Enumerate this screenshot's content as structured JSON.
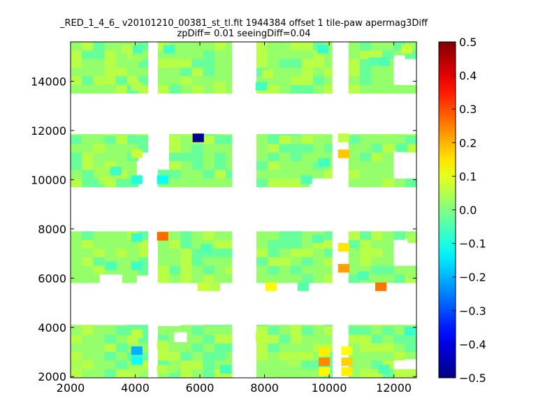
{
  "chart_data": {
    "type": "heatmap",
    "title_lines": [
      "_RED_1_4_6_ v20101210_00381_st_tl.fit 1944384 offset 1 tile-paw apermag3Diff",
      "zpDiff= 0.01 seeingDiff=0.04"
    ],
    "xlabel": "",
    "ylabel": "",
    "xlim": [
      2000,
      12700
    ],
    "ylim": [
      1950,
      15600
    ],
    "x_ticks": [
      2000,
      4000,
      6000,
      8000,
      10000,
      12000
    ],
    "y_ticks": [
      2000,
      4000,
      6000,
      8000,
      10000,
      12000,
      14000
    ],
    "x_tick_labels": [
      "2000",
      "4000",
      "6000",
      "8000",
      "10000",
      "12000"
    ],
    "y_tick_labels": [
      "2000",
      "4000",
      "6000",
      "8000",
      "10000",
      "12000",
      "14000"
    ],
    "colorbar": {
      "colormap": "jet",
      "range": [
        -0.5,
        0.5
      ],
      "ticks": [
        0.5,
        0.4,
        0.3,
        0.2,
        0.1,
        0.0,
        -0.1,
        -0.2,
        -0.3,
        -0.4,
        -0.5
      ],
      "tick_labels": [
        "0.5",
        "0.4",
        "0.3",
        "0.2",
        "0.1",
        "0.0",
        "−0.1",
        "−0.2",
        "−0.3",
        "−0.4",
        "−0.5"
      ]
    },
    "cell_size": [
      350,
      350
    ],
    "background_value": 0.02,
    "tiles": [
      {
        "x": [
          2000,
          4400
        ],
        "y": [
          1950,
          4100
        ]
      },
      {
        "x": [
          4700,
          7000
        ],
        "y": [
          1950,
          4100
        ]
      },
      {
        "x": [
          7750,
          10100
        ],
        "y": [
          1950,
          4100
        ]
      },
      {
        "x": [
          10600,
          12700
        ],
        "y": [
          1950,
          4100
        ]
      },
      {
        "x": [
          2000,
          4400
        ],
        "y": [
          5800,
          7900
        ]
      },
      {
        "x": [
          4700,
          7000
        ],
        "y": [
          5800,
          7900
        ]
      },
      {
        "x": [
          7750,
          10100
        ],
        "y": [
          5800,
          7900
        ]
      },
      {
        "x": [
          10600,
          12700
        ],
        "y": [
          5800,
          7900
        ]
      },
      {
        "x": [
          2000,
          4400
        ],
        "y": [
          9700,
          11850
        ]
      },
      {
        "x": [
          4700,
          7000
        ],
        "y": [
          9700,
          11850
        ]
      },
      {
        "x": [
          7750,
          10100
        ],
        "y": [
          9700,
          11850
        ]
      },
      {
        "x": [
          10600,
          12700
        ],
        "y": [
          9700,
          11850
        ]
      },
      {
        "x": [
          2000,
          4400
        ],
        "y": [
          13500,
          15600
        ]
      },
      {
        "x": [
          4700,
          7000
        ],
        "y": [
          13500,
          15600
        ]
      },
      {
        "x": [
          7750,
          10100
        ],
        "y": [
          13500,
          15600
        ]
      },
      {
        "x": [
          10600,
          12700
        ],
        "y": [
          13500,
          15600
        ]
      }
    ],
    "gaps": [
      {
        "x": [
          4050,
          4400
        ],
        "y": [
          9700,
          11150
        ]
      },
      {
        "x": [
          4700,
          5050
        ],
        "y": [
          10400,
          11850
        ]
      },
      {
        "x": [
          5750,
          6100
        ],
        "y": [
          11150,
          11500
        ]
      },
      {
        "x": [
          4700,
          5400
        ],
        "y": [
          4050,
          5800
        ]
      },
      {
        "x": [
          2000,
          7000
        ],
        "y": [
          4100,
          5450
        ]
      },
      {
        "x": [
          6100,
          7000
        ],
        "y": [
          5450,
          5800
        ]
      },
      {
        "x": [
          4700,
          5400
        ],
        "y": [
          6150,
          6450
        ]
      },
      {
        "x": [
          4050,
          4400
        ],
        "y": [
          5800,
          6100
        ]
      },
      {
        "x": [
          2900,
          3600
        ],
        "y": [
          5800,
          6150
        ]
      },
      {
        "x": [
          12000,
          12700
        ],
        "y": [
          6500,
          7600
        ]
      },
      {
        "x": [
          12000,
          12700
        ],
        "y": [
          2000,
          2700
        ]
      },
      {
        "x": [
          12000,
          12700
        ],
        "y": [
          13850,
          15050
        ]
      },
      {
        "x": [
          12000,
          12700
        ],
        "y": [
          10050,
          11150
        ]
      },
      {
        "x": [
          2700,
          3000
        ],
        "y": [
          9700,
          10050
        ]
      },
      {
        "x": [
          9400,
          10100
        ],
        "y": [
          9700,
          10050
        ]
      },
      {
        "x": [
          5200,
          5600
        ],
        "y": [
          3400,
          3800
        ]
      }
    ],
    "cells": [
      {
        "x": 5950,
        "y": 11700,
        "v": -0.48
      },
      {
        "x": 4850,
        "y": 7700,
        "v": 0.27
      },
      {
        "x": 4850,
        "y": 10000,
        "v": -0.12
      },
      {
        "x": 11600,
        "y": 5650,
        "v": 0.26
      },
      {
        "x": 8200,
        "y": 5650,
        "v": 0.13
      },
      {
        "x": 6100,
        "y": 5650,
        "v": 0.07
      },
      {
        "x": 6450,
        "y": 5650,
        "v": 0.05
      },
      {
        "x": 9200,
        "y": 5650,
        "v": -0.04
      },
      {
        "x": 10450,
        "y": 6400,
        "v": 0.22
      },
      {
        "x": 10450,
        "y": 7250,
        "v": 0.15
      },
      {
        "x": 10450,
        "y": 11050,
        "v": 0.18
      },
      {
        "x": 10450,
        "y": 11700,
        "v": 0.06
      },
      {
        "x": 9850,
        "y": 3000,
        "v": 0.14
      },
      {
        "x": 9850,
        "y": 2600,
        "v": 0.24
      },
      {
        "x": 9850,
        "y": 2200,
        "v": 0.13
      },
      {
        "x": 10550,
        "y": 2600,
        "v": 0.17
      },
      {
        "x": 10550,
        "y": 2200,
        "v": 0.14
      },
      {
        "x": 10550,
        "y": 3050,
        "v": 0.12
      },
      {
        "x": 4050,
        "y": 3050,
        "v": -0.2
      },
      {
        "x": 4050,
        "y": 2650,
        "v": -0.11
      },
      {
        "x": 4050,
        "y": 3750,
        "v": 0.06
      },
      {
        "x": 4050,
        "y": 2300,
        "v": 0.04
      },
      {
        "x": 12500,
        "y": 3850,
        "v": -0.07
      },
      {
        "x": 12400,
        "y": 15300,
        "v": 0.07
      },
      {
        "x": 9800,
        "y": 15300,
        "v": -0.07
      },
      {
        "x": 4050,
        "y": 15300,
        "v": -0.05
      },
      {
        "x": 4050,
        "y": 14950,
        "v": 0.03
      },
      {
        "x": 4050,
        "y": 13800,
        "v": 0.05
      },
      {
        "x": 3750,
        "y": 15300,
        "v": 0.05
      },
      {
        "x": 5050,
        "y": 15300,
        "v": -0.06
      },
      {
        "x": 11400,
        "y": 14800,
        "v": -0.04
      },
      {
        "x": 11700,
        "y": 14800,
        "v": -0.05
      },
      {
        "x": 7900,
        "y": 13800,
        "v": -0.06
      },
      {
        "x": 8100,
        "y": 14300,
        "v": 0.06
      },
      {
        "x": 6600,
        "y": 13800,
        "v": 0.05
      },
      {
        "x": 4050,
        "y": 11050,
        "v": 0.07
      },
      {
        "x": 4050,
        "y": 10000,
        "v": -0.09
      },
      {
        "x": 3400,
        "y": 10350,
        "v": -0.06
      },
      {
        "x": 3050,
        "y": 10000,
        "v": 0.05
      },
      {
        "x": 2950,
        "y": 10350,
        "v": 0.04
      },
      {
        "x": 9850,
        "y": 10700,
        "v": -0.06
      },
      {
        "x": 9300,
        "y": 10000,
        "v": -0.05
      },
      {
        "x": 4050,
        "y": 7650,
        "v": -0.07
      },
      {
        "x": 4050,
        "y": 6500,
        "v": -0.06
      },
      {
        "x": 3250,
        "y": 6500,
        "v": -0.05
      },
      {
        "x": 6200,
        "y": 7200,
        "v": -0.05
      },
      {
        "x": 9650,
        "y": 7600,
        "v": -0.04
      },
      {
        "x": 11050,
        "y": 6100,
        "v": -0.05
      },
      {
        "x": 12600,
        "y": 7600,
        "v": 0.04
      },
      {
        "x": 12600,
        "y": 6100,
        "v": 0.03
      },
      {
        "x": 6800,
        "y": 2300,
        "v": -0.06
      },
      {
        "x": 7900,
        "y": 3600,
        "v": 0.06
      },
      {
        "x": 4850,
        "y": 3300,
        "v": 0.05
      },
      {
        "x": 4850,
        "y": 2300,
        "v": 0.05
      },
      {
        "x": 5150,
        "y": 2300,
        "v": 0.03
      },
      {
        "x": 2150,
        "y": 2450,
        "v": 0.04
      },
      {
        "x": 8900,
        "y": 2600,
        "v": 0.04
      },
      {
        "x": 11700,
        "y": 2300,
        "v": -0.05
      },
      {
        "x": 12250,
        "y": 11300,
        "v": -0.03
      }
    ]
  }
}
